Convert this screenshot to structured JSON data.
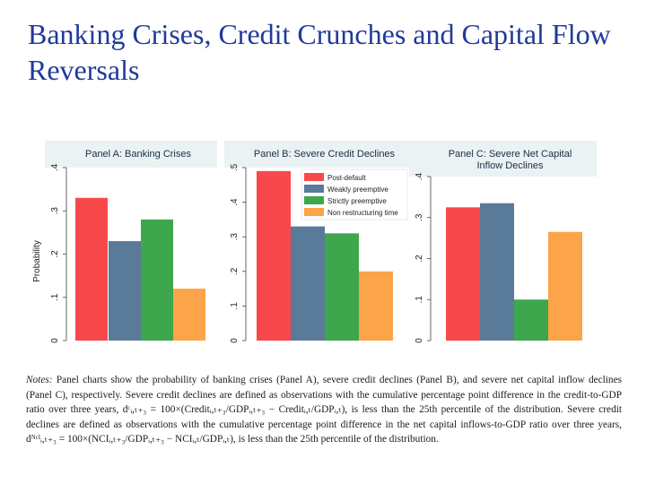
{
  "slide": {
    "title": "Banking Crises, Credit Crunches and Capital Flow Reversals"
  },
  "colors": {
    "red": "#f8484b",
    "blue": "#5a7a9a",
    "green": "#3ea64c",
    "orange": "#fba44a"
  },
  "legend": [
    "Post-default",
    "Weakly preemptive",
    "Strictly preemptive",
    "Non restructuring time"
  ],
  "chart_data": [
    {
      "type": "bar",
      "title": "Panel A: Banking Crises",
      "ylabel": "Probability",
      "ylim": [
        0,
        0.4
      ],
      "yticks": [
        "0",
        ".1",
        ".2",
        ".3",
        ".4"
      ],
      "categories": [
        "Post-default",
        "Weakly preemptive",
        "Strictly preemptive",
        "Non restructuring time"
      ],
      "values": [
        0.33,
        0.23,
        0.28,
        0.12
      ]
    },
    {
      "type": "bar",
      "title": "Panel B: Severe Credit Declines",
      "ylabel": "",
      "ylim": [
        0,
        0.5
      ],
      "yticks": [
        "0",
        ".1",
        ".2",
        ".3",
        ".4",
        ".5"
      ],
      "categories": [
        "Post-default",
        "Weakly preemptive",
        "Strictly preemptive",
        "Non restructuring time"
      ],
      "values": [
        0.49,
        0.33,
        0.31,
        0.2
      ],
      "legend_position": "top-right"
    },
    {
      "type": "bar",
      "title": "Panel C: Severe Net Capital Inflow Declines",
      "title_lines": [
        "Panel C: Severe Net Capital",
        "Inflow Declines"
      ],
      "ylabel": "",
      "ylim": [
        0,
        0.4
      ],
      "yticks": [
        "0",
        ".1",
        ".2",
        ".3",
        ".4"
      ],
      "categories": [
        "Post-default",
        "Weakly preemptive",
        "Strictly preemptive",
        "Non restructuring time"
      ],
      "values": [
        0.325,
        0.335,
        0.1,
        0.265
      ]
    }
  ],
  "notes": {
    "lead": "Notes:",
    "body": "Panel charts show the probability of banking crises (Panel A), severe credit declines (Panel B), and severe net capital inflow declines (Panel C), respectively. Severe credit declines are defined as observations with the cumulative percentage point difference in the credit-to-GDP ratio over three years, dᶜᵢ,ₜ₊₃ = 100×(Creditᵢ,ₜ₊₃/GDPᵢ,ₜ₊₃ − Creditᵢ,ₜ/GDPᵢ,ₜ), is less than the 25th percentile of the distribution. Severe credit declines are defined as observations with the cumulative percentage point difference in the net capital inflows-to-GDP ratio over three years, dᴺᶜᴵᵢ,ₜ₊₃ = 100×(NCIᵢ,ₜ₊₃/GDPᵢ,ₜ₊₃ − NCIᵢ,ₜ/GDPᵢ,ₜ), is less than the 25th percentile of the distribution."
  }
}
